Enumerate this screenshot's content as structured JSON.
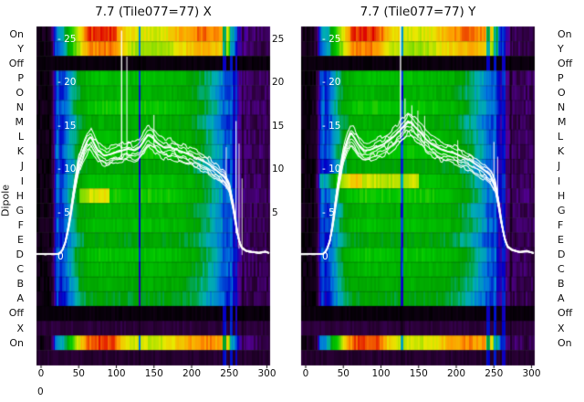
{
  "y_axis_label": "Dipole",
  "corner_label": "0",
  "row_labels": [
    "On",
    "Y",
    "Off",
    "P",
    "O",
    "N",
    "M",
    "L",
    "K",
    "J",
    "I",
    "H",
    "G",
    "F",
    "E",
    "D",
    "C",
    "B",
    "A",
    "Off",
    "X",
    "On"
  ],
  "inner_db_tick_labels": [
    "- 25",
    "- 20",
    "- 15",
    "- 10",
    "- 5",
    "0"
  ],
  "inner_db_tick_values": [
    25,
    20,
    15,
    10,
    5,
    0
  ],
  "right_gap_tick_labels": [
    "25",
    "20",
    "15",
    "10",
    "5"
  ],
  "right_gap_tick_values": [
    25,
    20,
    15,
    10,
    5
  ],
  "x_tick_labels": [
    "0",
    "50",
    "100",
    "150",
    "200",
    "250",
    "300"
  ],
  "x_tick_values": [
    0,
    50,
    100,
    150,
    200,
    250,
    300
  ],
  "line_color": "#ffffff",
  "colormap_stops": [
    [
      0,
      "#000000"
    ],
    [
      0.07,
      "#2a0036"
    ],
    [
      0.14,
      "#55009a"
    ],
    [
      0.22,
      "#0000c8"
    ],
    [
      0.3,
      "#0077dd"
    ],
    [
      0.37,
      "#00b0b0"
    ],
    [
      0.45,
      "#00a000"
    ],
    [
      0.55,
      "#00c800"
    ],
    [
      0.63,
      "#7ddc00"
    ],
    [
      0.72,
      "#e8e800"
    ],
    [
      0.82,
      "#ff9900"
    ],
    [
      0.92,
      "#dd0000"
    ],
    [
      1,
      "#cccccc"
    ]
  ],
  "shared": {
    "rows": [
      {
        "label": "On",
        "kind": "on",
        "gain": 1
      },
      {
        "label": "Y",
        "kind": "on",
        "gain": 0.93
      },
      {
        "label": "Off",
        "kind": "off",
        "gain": 1
      },
      {
        "label": "P",
        "kind": "body",
        "gain": 1.02
      },
      {
        "label": "O",
        "kind": "body",
        "gain": 0.97
      },
      {
        "label": "N",
        "kind": "body",
        "gain": 1.06
      },
      {
        "label": "M",
        "kind": "body",
        "gain": 0.94
      },
      {
        "label": "L",
        "kind": "body",
        "gain": 1.0
      },
      {
        "label": "K",
        "kind": "body",
        "gain": 1.05
      },
      {
        "label": "J",
        "kind": "body",
        "gain": 0.92
      },
      {
        "label": "I",
        "kind": "body",
        "gain": 1.03
      },
      {
        "label": "H",
        "kind": "body",
        "gain": 1.08
      },
      {
        "label": "G",
        "kind": "body",
        "gain": 0.96
      },
      {
        "label": "F",
        "kind": "body",
        "gain": 1.02
      },
      {
        "label": "E",
        "kind": "body",
        "gain": 0.9
      },
      {
        "label": "D",
        "kind": "body",
        "gain": 1.04
      },
      {
        "label": "C",
        "kind": "body",
        "gain": 0.98
      },
      {
        "label": "B",
        "kind": "body",
        "gain": 0.94
      },
      {
        "label": "A",
        "kind": "body",
        "gain": 0.88
      },
      {
        "label": "Off",
        "kind": "off",
        "gain": 1
      },
      {
        "label": "X",
        "kind": "dark",
        "gain": 1
      },
      {
        "label": "On",
        "kind": "on",
        "gain": 0.98
      }
    ],
    "envelopes": {
      "on": [
        [
          -6,
          0.03
        ],
        [
          10,
          0.04
        ],
        [
          15,
          0.1
        ],
        [
          18,
          0.28
        ],
        [
          22,
          0.33
        ],
        [
          28,
          0.36
        ],
        [
          36,
          0.5
        ],
        [
          45,
          0.65
        ],
        [
          55,
          0.8
        ],
        [
          62,
          0.88
        ],
        [
          75,
          0.9
        ],
        [
          95,
          0.89
        ],
        [
          105,
          0.8
        ],
        [
          115,
          0.74
        ],
        [
          130,
          0.71
        ],
        [
          150,
          0.7
        ],
        [
          168,
          0.73
        ],
        [
          182,
          0.78
        ],
        [
          198,
          0.82
        ],
        [
          212,
          0.85
        ],
        [
          225,
          0.84
        ],
        [
          238,
          0.82
        ],
        [
          247,
          0.75
        ],
        [
          252,
          0.5
        ],
        [
          256,
          0.32
        ],
        [
          260,
          0.22
        ],
        [
          266,
          0.15
        ],
        [
          275,
          0.11
        ],
        [
          290,
          0.09
        ],
        [
          305,
          0.07
        ],
        [
          318,
          0.06
        ]
      ],
      "body": [
        [
          -6,
          0.02
        ],
        [
          12,
          0.025
        ],
        [
          16,
          0.1
        ],
        [
          19,
          0.26
        ],
        [
          22,
          0.3
        ],
        [
          25,
          0.24
        ],
        [
          30,
          0.27
        ],
        [
          36,
          0.33
        ],
        [
          44,
          0.4
        ],
        [
          52,
          0.46
        ],
        [
          62,
          0.5
        ],
        [
          80,
          0.52
        ],
        [
          100,
          0.51
        ],
        [
          120,
          0.5
        ],
        [
          140,
          0.52
        ],
        [
          160,
          0.51
        ],
        [
          178,
          0.5
        ],
        [
          195,
          0.48
        ],
        [
          208,
          0.44
        ],
        [
          220,
          0.4
        ],
        [
          232,
          0.35
        ],
        [
          242,
          0.3
        ],
        [
          250,
          0.27
        ],
        [
          257,
          0.2
        ],
        [
          263,
          0.14
        ],
        [
          270,
          0.11
        ],
        [
          282,
          0.09
        ],
        [
          295,
          0.1
        ],
        [
          305,
          0.08
        ],
        [
          318,
          0.07
        ]
      ],
      "dark": 0.07,
      "off": 0.015
    }
  },
  "chart_data": [
    {
      "type": "heatmap",
      "title": "7.7 (Tile077=77) X",
      "polarization": "X",
      "ylabel": "Dipole",
      "x_ticks": [
        0,
        50,
        100,
        150,
        200,
        250,
        300
      ],
      "db_ticks": [
        0,
        5,
        10,
        15,
        20,
        25
      ],
      "x_range": [
        -6,
        304
      ],
      "seed": 1,
      "hot_rows": [
        {
          "row": "H",
          "x0": 50,
          "x1": 90,
          "boost": 1.28
        }
      ],
      "stripes": [
        {
          "d": 130,
          "w": 1.5,
          "m": 0.45
        },
        {
          "d": 243,
          "w": 2,
          "set": 0.28
        },
        {
          "d": 252,
          "w": 1.8,
          "set": 0.3
        },
        {
          "d": 259,
          "w": 1.5,
          "set": 0.26
        },
        {
          "d": 267,
          "w": 1.5,
          "m": 0.6
        }
      ],
      "line_profile_db": [
        [
          -6,
          0.3
        ],
        [
          18,
          0.3
        ],
        [
          24,
          0.35
        ],
        [
          28,
          0.7
        ],
        [
          32,
          1.6
        ],
        [
          36,
          3.2
        ],
        [
          40,
          5.5
        ],
        [
          45,
          8.5
        ],
        [
          50,
          10.8
        ],
        [
          56,
          12.3
        ],
        [
          62,
          13.4
        ],
        [
          66,
          13.8
        ],
        [
          70,
          13.1
        ],
        [
          76,
          12.2
        ],
        [
          84,
          11.6
        ],
        [
          92,
          11.8
        ],
        [
          100,
          12
        ],
        [
          108,
          12.2
        ],
        [
          116,
          12.4
        ],
        [
          124,
          12.2
        ],
        [
          130,
          12.5
        ],
        [
          136,
          13.2
        ],
        [
          142,
          14
        ],
        [
          148,
          13.7
        ],
        [
          156,
          13
        ],
        [
          164,
          12.5
        ],
        [
          172,
          12.6
        ],
        [
          180,
          12.3
        ],
        [
          190,
          12
        ],
        [
          200,
          11.6
        ],
        [
          210,
          11.2
        ],
        [
          220,
          10.8
        ],
        [
          228,
          10.3
        ],
        [
          236,
          9.7
        ],
        [
          244,
          9.1
        ],
        [
          250,
          8.2
        ],
        [
          254,
          6.5
        ],
        [
          258,
          4.2
        ],
        [
          262,
          2.2
        ],
        [
          266,
          1.1
        ],
        [
          272,
          0.7
        ],
        [
          280,
          0.55
        ],
        [
          290,
          0.45
        ],
        [
          298,
          0.6
        ],
        [
          306,
          0.35
        ],
        [
          318,
          0.3
        ]
      ],
      "spikes": [
        {
          "d": 107,
          "db": 26,
          "w": 1.3
        },
        {
          "d": 114,
          "db": 23,
          "w": 1
        },
        {
          "d": 150,
          "db": 16.3,
          "w": 1
        },
        {
          "d": 246,
          "db": 12.6,
          "w": 0.9
        },
        {
          "d": 259,
          "db": 15.6,
          "w": 1.1
        },
        {
          "d": 263,
          "db": 13,
          "w": 0.9
        },
        {
          "d": 267,
          "db": 9,
          "w": 0.8
        }
      ]
    },
    {
      "type": "heatmap",
      "title": "7.7 (Tile077=77) Y",
      "polarization": "Y",
      "ylabel": "Dipole",
      "x_ticks": [
        0,
        50,
        100,
        150,
        200,
        250,
        300
      ],
      "db_ticks": [
        0,
        5,
        10,
        15,
        20,
        25
      ],
      "x_range": [
        -6,
        304
      ],
      "seed": 2,
      "hot_rows": [
        {
          "row": "I",
          "x0": 12,
          "x1": 150,
          "boost": 1.3
        },
        {
          "row": "I",
          "x0": 40,
          "x1": 75,
          "boost": 1.12
        }
      ],
      "stripes": [
        {
          "d": 127,
          "w": 1.5,
          "m": 0.5
        },
        {
          "d": 242,
          "w": 2,
          "set": 0.28
        },
        {
          "d": 251,
          "w": 1.8,
          "set": 0.3
        },
        {
          "d": 262,
          "w": 2.5,
          "set": 0.27
        },
        {
          "d": 272,
          "w": 1.5,
          "m": 0.55
        }
      ],
      "line_profile_db": [
        [
          -6,
          0.3
        ],
        [
          18,
          0.3
        ],
        [
          24,
          0.35
        ],
        [
          28,
          0.8
        ],
        [
          32,
          1.8
        ],
        [
          36,
          3.8
        ],
        [
          40,
          6.5
        ],
        [
          45,
          9.5
        ],
        [
          50,
          11.8
        ],
        [
          55,
          13.2
        ],
        [
          60,
          14.2
        ],
        [
          64,
          13.8
        ],
        [
          70,
          12.9
        ],
        [
          78,
          12.2
        ],
        [
          86,
          12.3
        ],
        [
          94,
          12.6
        ],
        [
          102,
          12.9
        ],
        [
          110,
          13.3
        ],
        [
          118,
          13.9
        ],
        [
          124,
          14.4
        ],
        [
          130,
          15
        ],
        [
          136,
          15.6
        ],
        [
          142,
          15.2
        ],
        [
          148,
          14.7
        ],
        [
          154,
          14.1
        ],
        [
          160,
          13.5
        ],
        [
          168,
          12.9
        ],
        [
          178,
          12.4
        ],
        [
          188,
          12.1
        ],
        [
          198,
          11.9
        ],
        [
          208,
          11.5
        ],
        [
          218,
          11.1
        ],
        [
          228,
          10.5
        ],
        [
          238,
          9.9
        ],
        [
          246,
          9.3
        ],
        [
          252,
          8.2
        ],
        [
          256,
          6.3
        ],
        [
          260,
          4
        ],
        [
          264,
          2.2
        ],
        [
          268,
          1.2
        ],
        [
          274,
          0.8
        ],
        [
          284,
          0.55
        ],
        [
          294,
          0.65
        ],
        [
          304,
          0.4
        ],
        [
          312,
          0.55
        ],
        [
          318,
          0.45
        ]
      ],
      "spikes": [
        {
          "d": 126,
          "db": 27.5,
          "w": 1.3
        },
        {
          "d": 132,
          "db": 18.2,
          "w": 1
        },
        {
          "d": 141,
          "db": 17.4,
          "w": 1
        },
        {
          "d": 149,
          "db": 16.8,
          "w": 0.9
        },
        {
          "d": 158,
          "db": 16.2,
          "w": 0.9
        },
        {
          "d": 202,
          "db": 13.4,
          "w": 0.9
        },
        {
          "d": 250,
          "db": 13.2,
          "w": 1
        },
        {
          "d": 255,
          "db": 11.5,
          "w": 0.9
        }
      ]
    }
  ]
}
